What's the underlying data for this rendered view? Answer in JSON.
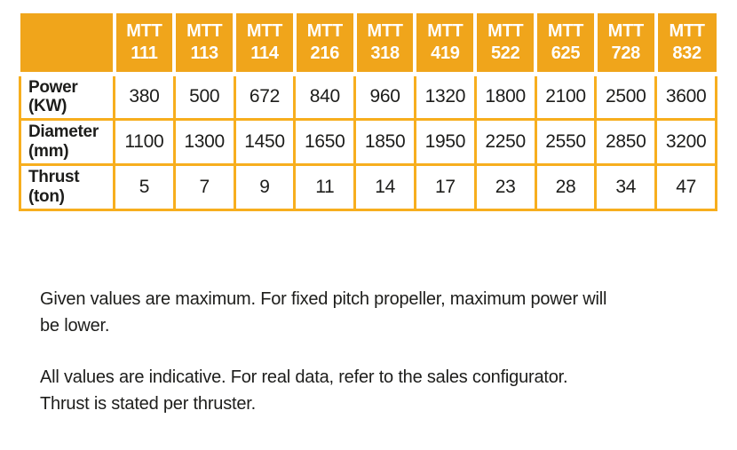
{
  "chart_data": {
    "type": "table",
    "title": "Thruster specification table",
    "columns": [
      {
        "series": "MTT",
        "model": "111"
      },
      {
        "series": "MTT",
        "model": "113"
      },
      {
        "series": "MTT",
        "model": "114"
      },
      {
        "series": "MTT",
        "model": "216"
      },
      {
        "series": "MTT",
        "model": "318"
      },
      {
        "series": "MTT",
        "model": "419"
      },
      {
        "series": "MTT",
        "model": "522"
      },
      {
        "series": "MTT",
        "model": "625"
      },
      {
        "series": "MTT",
        "model": "728"
      },
      {
        "series": "MTT",
        "model": "832"
      }
    ],
    "rows": [
      {
        "key": "power",
        "label": "Power",
        "unit": "(KW)",
        "values": [
          "380",
          "500",
          "672",
          "840",
          "960",
          "1320",
          "1800",
          "2100",
          "2500",
          "3600"
        ]
      },
      {
        "key": "diameter",
        "label": "Diameter",
        "unit": "(mm)",
        "values": [
          "1100",
          "1300",
          "1450",
          "1650",
          "1850",
          "1950",
          "2250",
          "2550",
          "2850",
          "3200"
        ]
      },
      {
        "key": "thrust",
        "label": "Thrust",
        "unit": "(ton)",
        "values": [
          "5",
          "7",
          "9",
          "11",
          "14",
          "17",
          "23",
          "28",
          "34",
          "47"
        ]
      }
    ]
  },
  "notes": [
    {
      "line1": "Given values are maximum. For fixed pitch propeller, maximum power will",
      "line2": "be lower."
    },
    {
      "line1": "All values are indicative. For real data, refer to the sales configurator.",
      "line2": "Thrust is stated per thruster."
    }
  ],
  "colors": {
    "header_bg": "#f0a51b",
    "grid": "#f7ae1e",
    "header_text": "#ffffff",
    "body_text": "#1d1d1b",
    "page_bg": "#ffffff"
  }
}
